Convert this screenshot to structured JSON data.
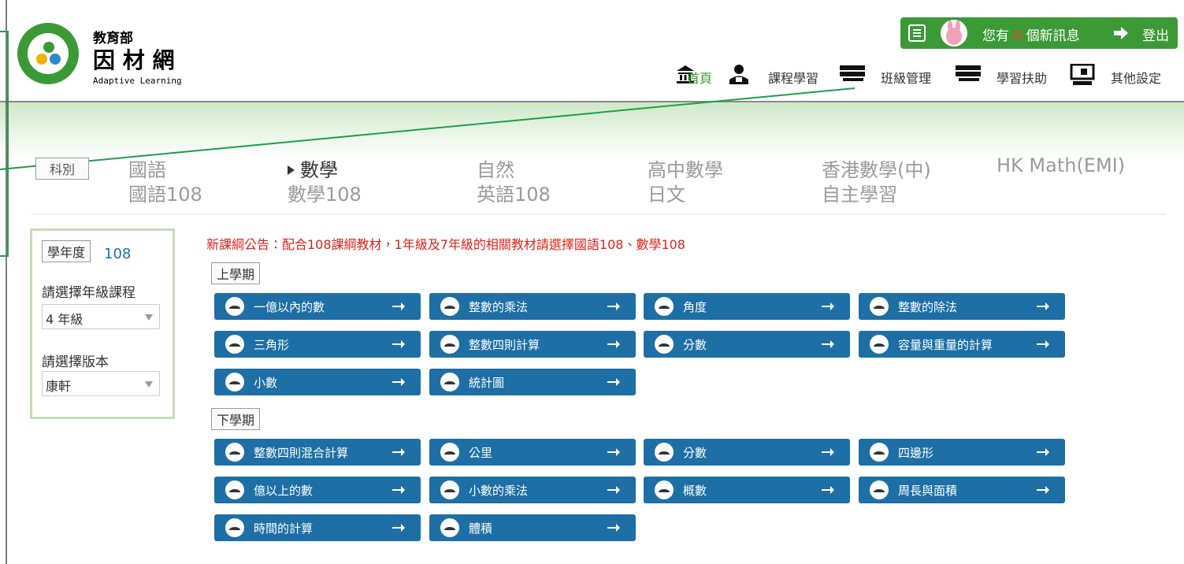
{
  "header": {
    "logo_title": "教育部",
    "logo_name": "因 材 網",
    "logo_subtitle": "Adaptive Learning",
    "message_prefix": "您有",
    "message_count": 0,
    "message_suffix": "個新訊息",
    "logout": "登出",
    "nav": [
      "首頁",
      "課程學習",
      "班級管理",
      "學習扶助",
      "其他設定"
    ]
  },
  "subjects": {
    "label": "科別",
    "items": [
      {
        "name": "國語"
      },
      {
        "name": "數學",
        "selected": true
      },
      {
        "name": "自然"
      },
      {
        "name": "高中數學"
      },
      {
        "name": "香港數學(中)"
      },
      {
        "name": "HK Math(EMI)"
      },
      {
        "name": "國語108"
      },
      {
        "name": "數學108"
      },
      {
        "name": "英語108"
      },
      {
        "name": "日文"
      },
      {
        "name": "自主學習"
      }
    ]
  },
  "sidebar": {
    "year_label": "學年度",
    "year": 108,
    "grade_label": "請選擇年級課程",
    "grade": "4 年級",
    "version_label": "請選擇版本",
    "version": "康軒"
  },
  "notice": "新課綱公告：配合108課綱教材，1年級及7年級的相關教材請選擇國語108、數學108",
  "semesters": [
    {
      "title": "上學期",
      "units": [
        "一億以內的數",
        "整數的乘法",
        "角度",
        "整數的除法",
        "三角形",
        "整數四則計算",
        "分數",
        "容量與重量的計算",
        "小數",
        "統計圖"
      ]
    },
    {
      "title": "下學期",
      "units": [
        "整數四則混合計算",
        "公里",
        "分數",
        "四邊形",
        "億以上的數",
        "小數的乘法",
        "概數",
        "周長與面積",
        "時間的計算",
        "體積"
      ]
    }
  ]
}
